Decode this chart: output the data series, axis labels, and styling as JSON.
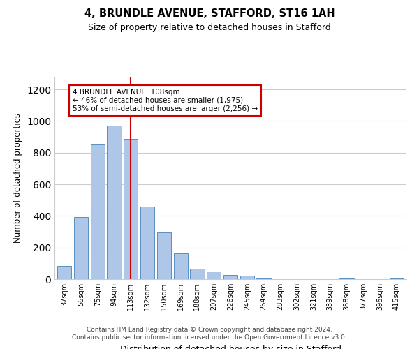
{
  "title_line1": "4, BRUNDLE AVENUE, STAFFORD, ST16 1AH",
  "title_line2": "Size of property relative to detached houses in Stafford",
  "xlabel": "Distribution of detached houses by size in Stafford",
  "ylabel": "Number of detached properties",
  "bar_labels": [
    "37sqm",
    "56sqm",
    "75sqm",
    "94sqm",
    "113sqm",
    "132sqm",
    "150sqm",
    "169sqm",
    "188sqm",
    "207sqm",
    "226sqm",
    "245sqm",
    "264sqm",
    "283sqm",
    "302sqm",
    "321sqm",
    "339sqm",
    "358sqm",
    "377sqm",
    "396sqm",
    "415sqm"
  ],
  "bar_values": [
    85,
    395,
    850,
    970,
    885,
    460,
    295,
    165,
    65,
    48,
    28,
    20,
    10,
    0,
    0,
    0,
    0,
    10,
    0,
    0,
    10
  ],
  "bar_color": "#aec6e8",
  "bar_edge_color": "#5a8fc0",
  "annotation_text_line1": "4 BRUNDLE AVENUE: 108sqm",
  "annotation_text_line2": "← 46% of detached houses are smaller (1,975)",
  "annotation_text_line3": "53% of semi-detached houses are larger (2,256) →",
  "annotation_box_color": "#ffffff",
  "annotation_box_edge_color": "#cc0000",
  "red_line_x_label": "113sqm",
  "ylim": [
    0,
    1280
  ],
  "yticks": [
    0,
    200,
    400,
    600,
    800,
    1000,
    1200
  ],
  "grid_color": "#cccccc",
  "footer_line1": "Contains HM Land Registry data © Crown copyright and database right 2024.",
  "footer_line2": "Contains public sector information licensed under the Open Government Licence v3.0.",
  "bg_color": "#ffffff",
  "fig_width": 6.0,
  "fig_height": 5.0
}
